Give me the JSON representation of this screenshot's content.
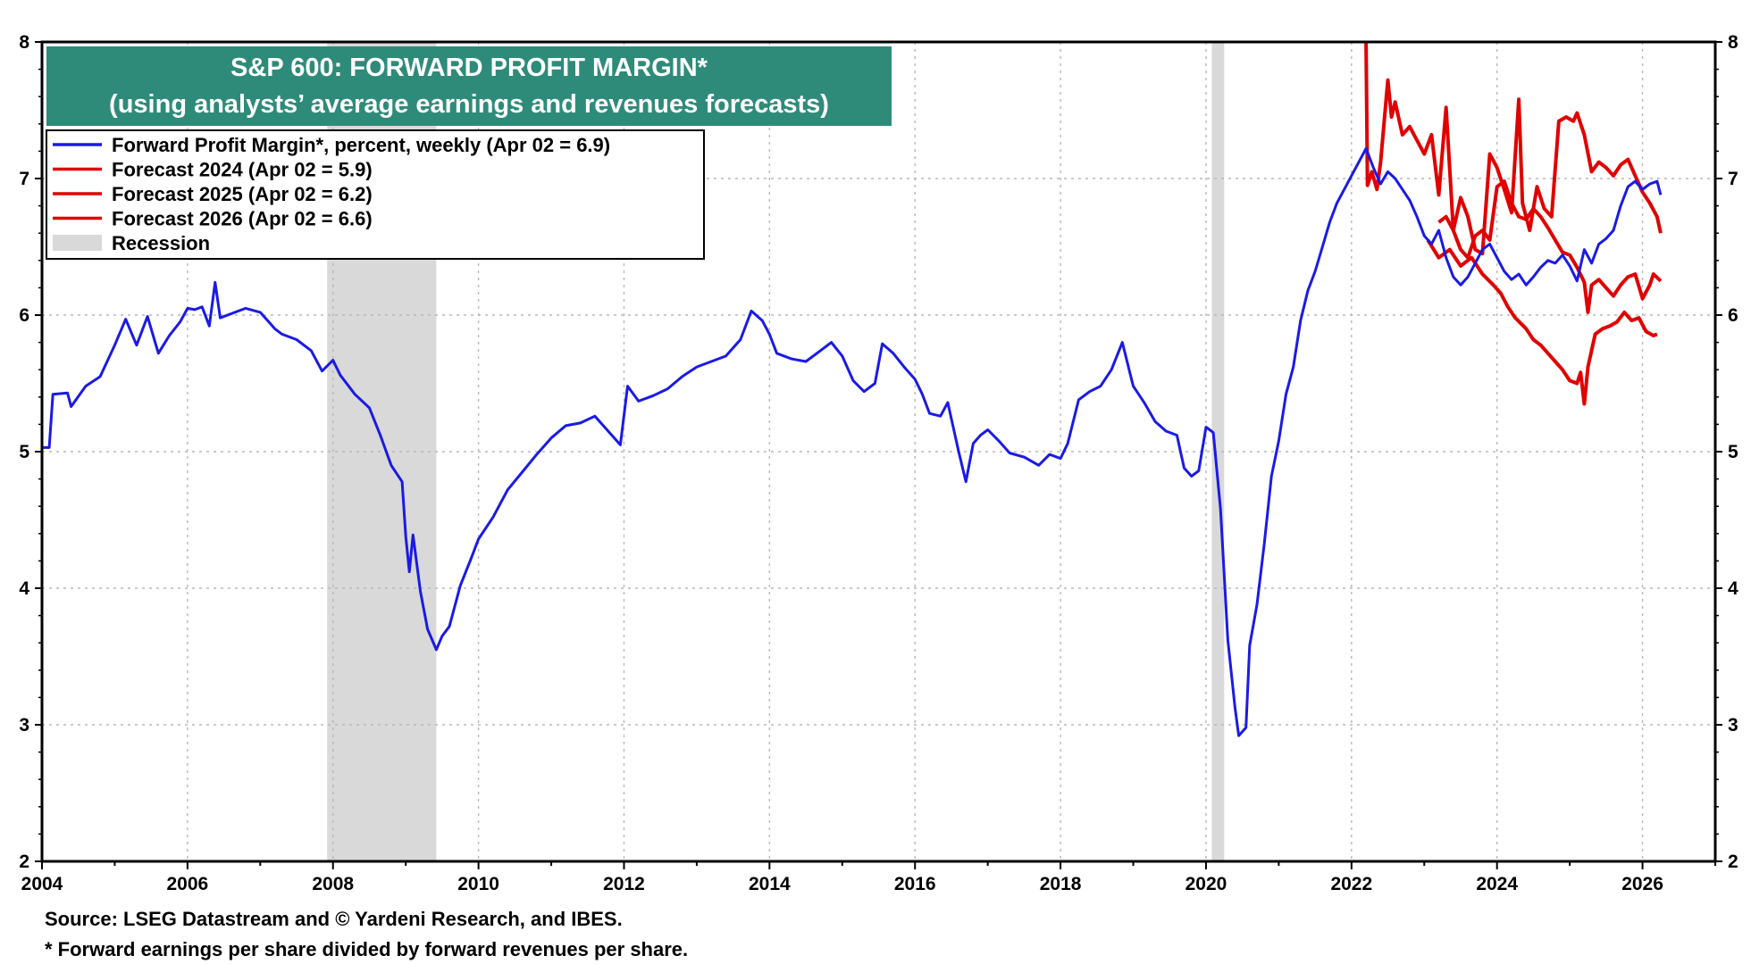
{
  "chart_data": {
    "type": "line",
    "title": "S&P 600: FORWARD PROFIT MARGIN*",
    "subtitle": "(using analysts’ average earnings and revenues forecasts)",
    "xlim": [
      2004,
      2027
    ],
    "ylim": [
      2,
      8
    ],
    "x_ticks": [
      2004,
      2006,
      2008,
      2010,
      2012,
      2014,
      2016,
      2018,
      2020,
      2022,
      2024,
      2026
    ],
    "y_ticks": [
      2,
      3,
      4,
      5,
      6,
      7,
      8
    ],
    "grid": true,
    "legend_position": "top-left",
    "recessions": [
      [
        2007.92,
        2009.42
      ],
      [
        2020.08,
        2020.25
      ]
    ],
    "series": [
      {
        "name": "Forward Profit Margin*, percent, weekly (Apr 02 = 6.9)",
        "color": "#1a1ae6",
        "points": [
          [
            2004.0,
            5.03
          ],
          [
            2004.1,
            5.03
          ],
          [
            2004.15,
            5.42
          ],
          [
            2004.35,
            5.43
          ],
          [
            2004.4,
            5.33
          ],
          [
            2004.6,
            5.48
          ],
          [
            2004.8,
            5.55
          ],
          [
            2005.0,
            5.78
          ],
          [
            2005.15,
            5.97
          ],
          [
            2005.3,
            5.78
          ],
          [
            2005.45,
            5.99
          ],
          [
            2005.6,
            5.72
          ],
          [
            2005.75,
            5.85
          ],
          [
            2005.9,
            5.95
          ],
          [
            2006.0,
            6.05
          ],
          [
            2006.1,
            6.04
          ],
          [
            2006.2,
            6.06
          ],
          [
            2006.3,
            5.92
          ],
          [
            2006.38,
            6.24
          ],
          [
            2006.45,
            5.98
          ],
          [
            2006.6,
            6.01
          ],
          [
            2006.8,
            6.05
          ],
          [
            2007.0,
            6.02
          ],
          [
            2007.2,
            5.9
          ],
          [
            2007.3,
            5.86
          ],
          [
            2007.5,
            5.82
          ],
          [
            2007.7,
            5.74
          ],
          [
            2007.85,
            5.59
          ],
          [
            2008.0,
            5.67
          ],
          [
            2008.1,
            5.56
          ],
          [
            2008.3,
            5.42
          ],
          [
            2008.5,
            5.32
          ],
          [
            2008.65,
            5.12
          ],
          [
            2008.8,
            4.9
          ],
          [
            2008.95,
            4.78
          ],
          [
            2009.0,
            4.38
          ],
          [
            2009.05,
            4.12
          ],
          [
            2009.1,
            4.39
          ],
          [
            2009.2,
            3.98
          ],
          [
            2009.3,
            3.7
          ],
          [
            2009.42,
            3.55
          ],
          [
            2009.5,
            3.65
          ],
          [
            2009.6,
            3.72
          ],
          [
            2009.75,
            4.02
          ],
          [
            2009.9,
            4.22
          ],
          [
            2010.0,
            4.36
          ],
          [
            2010.2,
            4.52
          ],
          [
            2010.4,
            4.72
          ],
          [
            2010.6,
            4.85
          ],
          [
            2010.8,
            4.98
          ],
          [
            2011.0,
            5.1
          ],
          [
            2011.2,
            5.19
          ],
          [
            2011.4,
            5.21
          ],
          [
            2011.6,
            5.26
          ],
          [
            2011.8,
            5.14
          ],
          [
            2011.95,
            5.05
          ],
          [
            2012.05,
            5.48
          ],
          [
            2012.2,
            5.37
          ],
          [
            2012.4,
            5.41
          ],
          [
            2012.6,
            5.46
          ],
          [
            2012.8,
            5.55
          ],
          [
            2013.0,
            5.62
          ],
          [
            2013.2,
            5.66
          ],
          [
            2013.4,
            5.7
          ],
          [
            2013.6,
            5.82
          ],
          [
            2013.75,
            6.03
          ],
          [
            2013.9,
            5.96
          ],
          [
            2014.0,
            5.86
          ],
          [
            2014.1,
            5.72
          ],
          [
            2014.3,
            5.68
          ],
          [
            2014.5,
            5.66
          ],
          [
            2014.7,
            5.74
          ],
          [
            2014.85,
            5.8
          ],
          [
            2015.0,
            5.7
          ],
          [
            2015.15,
            5.52
          ],
          [
            2015.3,
            5.44
          ],
          [
            2015.45,
            5.5
          ],
          [
            2015.55,
            5.79
          ],
          [
            2015.7,
            5.72
          ],
          [
            2015.85,
            5.62
          ],
          [
            2016.0,
            5.53
          ],
          [
            2016.1,
            5.42
          ],
          [
            2016.2,
            5.28
          ],
          [
            2016.35,
            5.26
          ],
          [
            2016.45,
            5.36
          ],
          [
            2016.6,
            5.0
          ],
          [
            2016.7,
            4.78
          ],
          [
            2016.8,
            5.06
          ],
          [
            2016.9,
            5.12
          ],
          [
            2017.0,
            5.16
          ],
          [
            2017.15,
            5.08
          ],
          [
            2017.3,
            4.99
          ],
          [
            2017.5,
            4.96
          ],
          [
            2017.7,
            4.9
          ],
          [
            2017.85,
            4.98
          ],
          [
            2018.0,
            4.95
          ],
          [
            2018.1,
            5.06
          ],
          [
            2018.25,
            5.38
          ],
          [
            2018.4,
            5.44
          ],
          [
            2018.55,
            5.48
          ],
          [
            2018.7,
            5.6
          ],
          [
            2018.85,
            5.8
          ],
          [
            2019.0,
            5.48
          ],
          [
            2019.15,
            5.36
          ],
          [
            2019.3,
            5.22
          ],
          [
            2019.45,
            5.15
          ],
          [
            2019.6,
            5.12
          ],
          [
            2019.7,
            4.88
          ],
          [
            2019.8,
            4.82
          ],
          [
            2019.9,
            4.86
          ],
          [
            2020.0,
            5.18
          ],
          [
            2020.1,
            5.14
          ],
          [
            2020.2,
            4.58
          ],
          [
            2020.3,
            3.62
          ],
          [
            2020.4,
            3.12
          ],
          [
            2020.45,
            2.92
          ],
          [
            2020.55,
            2.98
          ],
          [
            2020.6,
            3.58
          ],
          [
            2020.7,
            3.88
          ],
          [
            2020.8,
            4.32
          ],
          [
            2020.9,
            4.82
          ],
          [
            2021.0,
            5.08
          ],
          [
            2021.1,
            5.42
          ],
          [
            2021.2,
            5.62
          ],
          [
            2021.3,
            5.96
          ],
          [
            2021.4,
            6.18
          ],
          [
            2021.5,
            6.32
          ],
          [
            2021.6,
            6.5
          ],
          [
            2021.7,
            6.68
          ],
          [
            2021.8,
            6.82
          ],
          [
            2021.9,
            6.92
          ],
          [
            2022.0,
            7.02
          ],
          [
            2022.1,
            7.12
          ],
          [
            2022.2,
            7.22
          ],
          [
            2022.3,
            7.08
          ],
          [
            2022.4,
            6.96
          ],
          [
            2022.5,
            7.05
          ],
          [
            2022.6,
            7.0
          ],
          [
            2022.7,
            6.92
          ],
          [
            2022.8,
            6.84
          ],
          [
            2022.9,
            6.72
          ],
          [
            2023.0,
            6.58
          ],
          [
            2023.1,
            6.52
          ],
          [
            2023.2,
            6.62
          ],
          [
            2023.3,
            6.42
          ],
          [
            2023.4,
            6.28
          ],
          [
            2023.5,
            6.22
          ],
          [
            2023.6,
            6.28
          ],
          [
            2023.7,
            6.38
          ],
          [
            2023.8,
            6.48
          ],
          [
            2023.9,
            6.52
          ],
          [
            2024.0,
            6.42
          ],
          [
            2024.1,
            6.32
          ],
          [
            2024.2,
            6.26
          ],
          [
            2024.3,
            6.3
          ],
          [
            2024.4,
            6.22
          ],
          [
            2024.5,
            6.28
          ],
          [
            2024.6,
            6.35
          ],
          [
            2024.7,
            6.4
          ],
          [
            2024.8,
            6.38
          ],
          [
            2024.9,
            6.44
          ],
          [
            2025.0,
            6.36
          ],
          [
            2025.1,
            6.25
          ],
          [
            2025.2,
            6.48
          ],
          [
            2025.3,
            6.38
          ],
          [
            2025.4,
            6.52
          ],
          [
            2025.5,
            6.56
          ],
          [
            2025.6,
            6.62
          ],
          [
            2025.7,
            6.8
          ],
          [
            2025.8,
            6.94
          ],
          [
            2025.9,
            6.98
          ],
          [
            2026.0,
            6.92
          ],
          [
            2026.1,
            6.96
          ],
          [
            2026.2,
            6.98
          ],
          [
            2026.25,
            6.88
          ]
        ]
      },
      {
        "name": "Forecast 2024 (Apr 02 = 5.9)",
        "color": "#e00000",
        "points": [
          [
            2023.05,
            6.55
          ],
          [
            2023.2,
            6.42
          ],
          [
            2023.35,
            6.48
          ],
          [
            2023.5,
            6.36
          ],
          [
            2023.65,
            6.42
          ],
          [
            2023.8,
            6.3
          ],
          [
            2023.95,
            6.22
          ],
          [
            2024.05,
            6.16
          ],
          [
            2024.15,
            6.06
          ],
          [
            2024.25,
            5.98
          ],
          [
            2024.4,
            5.9
          ],
          [
            2024.5,
            5.82
          ],
          [
            2024.6,
            5.78
          ],
          [
            2024.7,
            5.72
          ],
          [
            2024.8,
            5.66
          ],
          [
            2024.9,
            5.6
          ],
          [
            2025.0,
            5.52
          ],
          [
            2025.1,
            5.5
          ],
          [
            2025.15,
            5.58
          ],
          [
            2025.2,
            5.35
          ],
          [
            2025.25,
            5.62
          ],
          [
            2025.35,
            5.86
          ],
          [
            2025.45,
            5.9
          ],
          [
            2025.55,
            5.92
          ],
          [
            2025.65,
            5.95
          ],
          [
            2025.75,
            6.02
          ],
          [
            2025.85,
            5.96
          ],
          [
            2025.95,
            5.98
          ],
          [
            2026.05,
            5.88
          ],
          [
            2026.15,
            5.85
          ],
          [
            2026.2,
            5.86
          ]
        ]
      },
      {
        "name": "Forecast 2025 (Apr 02 = 6.2)",
        "color": "#e00000",
        "points": [
          [
            2023.2,
            6.68
          ],
          [
            2023.3,
            6.72
          ],
          [
            2023.4,
            6.62
          ],
          [
            2023.5,
            6.48
          ],
          [
            2023.6,
            6.42
          ],
          [
            2023.7,
            6.58
          ],
          [
            2023.8,
            6.62
          ],
          [
            2023.9,
            6.55
          ],
          [
            2024.0,
            6.94
          ],
          [
            2024.1,
            6.98
          ],
          [
            2024.2,
            6.82
          ],
          [
            2024.3,
            6.72
          ],
          [
            2024.4,
            6.7
          ],
          [
            2024.5,
            6.78
          ],
          [
            2024.6,
            6.72
          ],
          [
            2024.7,
            6.64
          ],
          [
            2024.8,
            6.55
          ],
          [
            2024.9,
            6.46
          ],
          [
            2025.0,
            6.44
          ],
          [
            2025.1,
            6.35
          ],
          [
            2025.2,
            6.24
          ],
          [
            2025.25,
            6.02
          ],
          [
            2025.3,
            6.22
          ],
          [
            2025.4,
            6.26
          ],
          [
            2025.5,
            6.2
          ],
          [
            2025.6,
            6.14
          ],
          [
            2025.7,
            6.22
          ],
          [
            2025.8,
            6.28
          ],
          [
            2025.9,
            6.3
          ],
          [
            2026.0,
            6.12
          ],
          [
            2026.1,
            6.22
          ],
          [
            2026.15,
            6.3
          ],
          [
            2026.25,
            6.25
          ]
        ]
      },
      {
        "name": "Forecast 2026 (Apr 02 = 6.6)",
        "color": "#e00000",
        "points": [
          [
            2022.2,
            8.0
          ],
          [
            2022.22,
            6.95
          ],
          [
            2022.28,
            7.05
          ],
          [
            2022.35,
            6.92
          ],
          [
            2022.4,
            7.12
          ],
          [
            2022.5,
            7.72
          ],
          [
            2022.55,
            7.45
          ],
          [
            2022.6,
            7.56
          ],
          [
            2022.7,
            7.32
          ],
          [
            2022.8,
            7.38
          ],
          [
            2022.9,
            7.28
          ],
          [
            2023.0,
            7.18
          ],
          [
            2023.1,
            7.32
          ],
          [
            2023.2,
            6.88
          ],
          [
            2023.3,
            7.52
          ],
          [
            2023.4,
            6.62
          ],
          [
            2023.5,
            6.86
          ],
          [
            2023.6,
            6.72
          ],
          [
            2023.7,
            6.48
          ],
          [
            2023.8,
            6.45
          ],
          [
            2023.9,
            7.18
          ],
          [
            2024.0,
            7.08
          ],
          [
            2024.1,
            6.92
          ],
          [
            2024.2,
            6.75
          ],
          [
            2024.3,
            7.58
          ],
          [
            2024.35,
            6.82
          ],
          [
            2024.45,
            6.62
          ],
          [
            2024.55,
            6.94
          ],
          [
            2024.65,
            6.78
          ],
          [
            2024.75,
            6.72
          ],
          [
            2024.85,
            7.42
          ],
          [
            2024.95,
            7.45
          ],
          [
            2025.05,
            7.42
          ],
          [
            2025.1,
            7.48
          ],
          [
            2025.2,
            7.32
          ],
          [
            2025.3,
            7.05
          ],
          [
            2025.4,
            7.12
          ],
          [
            2025.5,
            7.08
          ],
          [
            2025.6,
            7.02
          ],
          [
            2025.7,
            7.1
          ],
          [
            2025.8,
            7.14
          ],
          [
            2025.9,
            7.02
          ],
          [
            2026.0,
            6.9
          ],
          [
            2026.1,
            6.82
          ],
          [
            2026.2,
            6.72
          ],
          [
            2026.25,
            6.6
          ]
        ]
      }
    ]
  },
  "legend": {
    "items": [
      {
        "label": "Forward Profit Margin*, percent, weekly (Apr 02 = 6.9)",
        "color": "#1a1ae6",
        "kind": "line"
      },
      {
        "label": "Forecast 2024 (Apr 02 = 5.9)",
        "color": "#e00000",
        "kind": "line"
      },
      {
        "label": "Forecast 2025 (Apr 02 = 6.2)",
        "color": "#e00000",
        "kind": "line"
      },
      {
        "label": "Forecast 2026 (Apr 02 = 6.6)",
        "color": "#e00000",
        "kind": "line"
      },
      {
        "label": "Recession",
        "color": "#d9d9d9",
        "kind": "box"
      }
    ]
  },
  "colors": {
    "title_bg": "#2e8b7a",
    "recession": "#d9d9d9",
    "grid": "#b8b8b8"
  },
  "footnotes": {
    "source": "Source: LSEG Datastream and © Yardeni Research, and IBES.",
    "note": "* Forward earnings per share divided by forward revenues per share."
  }
}
